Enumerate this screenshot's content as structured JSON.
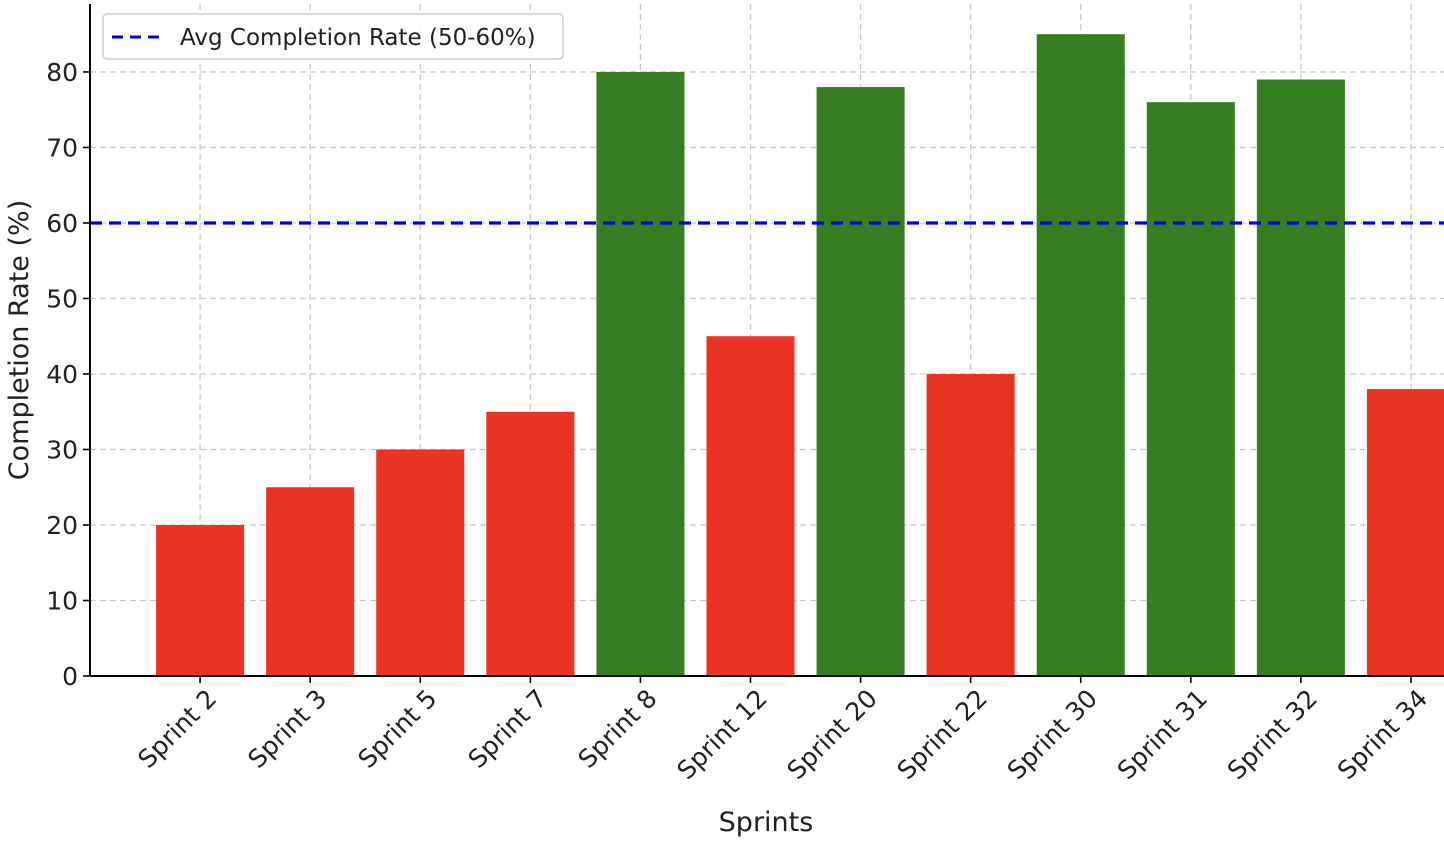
{
  "chart_data": {
    "type": "bar",
    "title": "",
    "xlabel": "Sprints",
    "ylabel": "Completion Rate (%)",
    "categories": [
      "Sprint 2",
      "Sprint 3",
      "Sprint 5",
      "Sprint 7",
      "Sprint 8",
      "Sprint 12",
      "Sprint 20",
      "Sprint 22",
      "Sprint 30",
      "Sprint 31",
      "Sprint 32",
      "Sprint 34"
    ],
    "values": [
      20,
      25,
      30,
      35,
      80,
      45,
      78,
      40,
      85,
      76,
      79,
      38
    ],
    "bar_colors": [
      "#e93323",
      "#e93323",
      "#e93323",
      "#e93323",
      "#377e22",
      "#e93323",
      "#377e22",
      "#e93323",
      "#377e22",
      "#377e22",
      "#377e22",
      "#e93323"
    ],
    "ylim": [
      0,
      89
    ],
    "yticks": [
      0,
      10,
      20,
      30,
      40,
      50,
      60,
      70,
      80
    ],
    "grid": true,
    "reference_line": {
      "value": 60,
      "label": "Avg Completion Rate (50-60%)",
      "color": "#0000dd",
      "style": "dashed"
    },
    "legend": {
      "position": "top-left"
    }
  }
}
